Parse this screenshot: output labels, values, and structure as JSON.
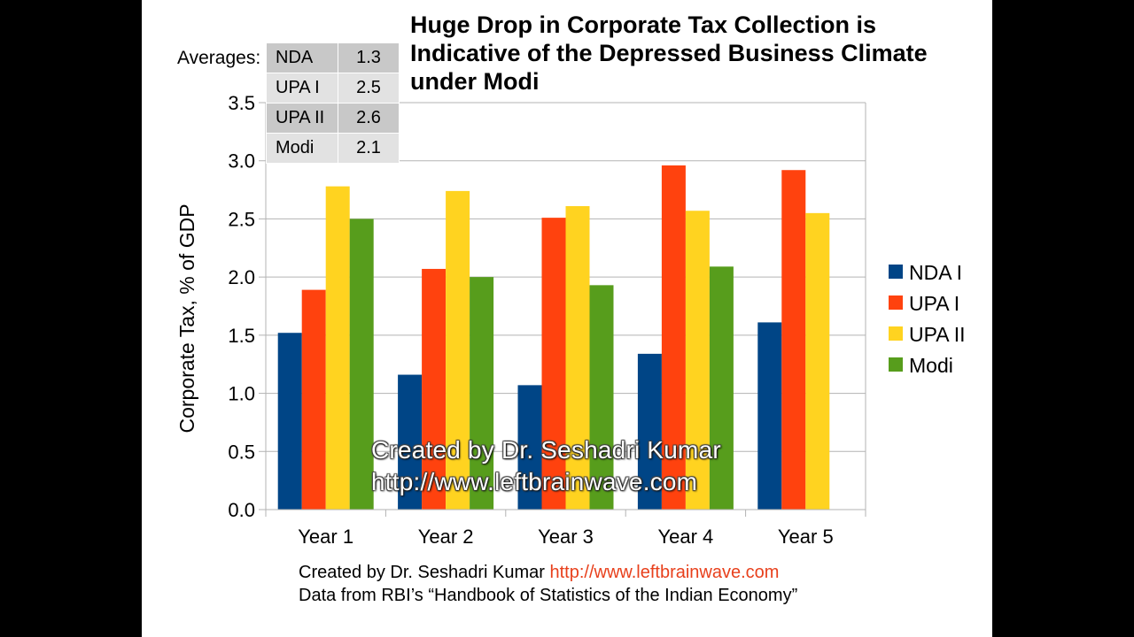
{
  "title_lines": [
    "Huge Drop in Corporate Tax Collection is",
    "Indicative of the Depressed Business Climate",
    "under Modi"
  ],
  "averages": {
    "label": "Averages:",
    "rows": [
      {
        "name": "NDA",
        "value": "1.3"
      },
      {
        "name": "UPA I",
        "value": "2.5"
      },
      {
        "name": "UPA II",
        "value": "2.6"
      },
      {
        "name": "Modi",
        "value": "2.1"
      }
    ]
  },
  "watermark": {
    "line1": "Created by Dr. Seshadri Kumar",
    "line2": "http://www.leftbrainwave.com"
  },
  "footer": {
    "credit": "Created by Dr. Seshadri Kumar ",
    "link": "http://www.leftbrainwave.com",
    "source": "Data from RBI’s “Handbook of Statistics of the Indian Economy”"
  },
  "chart_data": {
    "type": "bar",
    "ylabel": "Corporate Tax, % of GDP",
    "ylim": [
      0,
      3.5
    ],
    "yticks": [
      "0.0",
      "0.5",
      "1.0",
      "1.5",
      "2.0",
      "2.5",
      "3.0",
      "3.5"
    ],
    "grid": true,
    "legend_position": "right",
    "categories": [
      "Year 1",
      "Year 2",
      "Year 3",
      "Year 4",
      "Year 5"
    ],
    "series": [
      {
        "name": "NDA I",
        "color": "#004586",
        "values": [
          1.52,
          1.16,
          1.07,
          1.34,
          1.61
        ]
      },
      {
        "name": "UPA I",
        "color": "#ff420e",
        "values": [
          1.89,
          2.07,
          2.51,
          2.96,
          2.92
        ]
      },
      {
        "name": "UPA II",
        "color": "#ffd320",
        "values": [
          2.78,
          2.74,
          2.61,
          2.57,
          2.55
        ]
      },
      {
        "name": "Modi",
        "color": "#579d1c",
        "values": [
          2.5,
          2.0,
          1.93,
          2.09,
          null
        ]
      }
    ]
  }
}
